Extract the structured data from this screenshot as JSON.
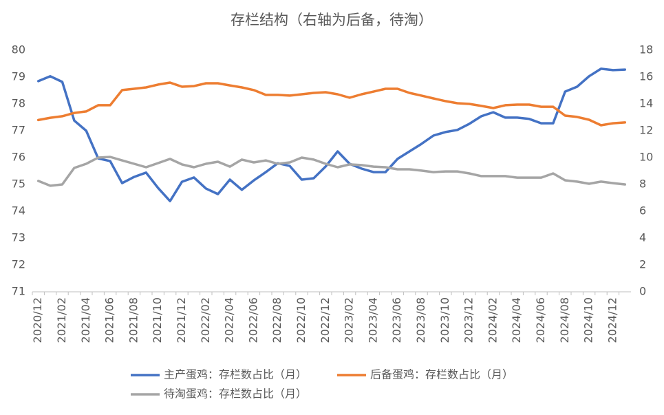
{
  "chart_data": {
    "type": "line",
    "title": "存栏结构（右轴为后备，待淘）",
    "categories": [
      "2020/12",
      null,
      "2021/02",
      null,
      "2021/04",
      null,
      "2021/06",
      null,
      "2021/08",
      null,
      "2021/10",
      null,
      "2021/12",
      null,
      "2022/02",
      null,
      "2022/04",
      null,
      "2022/06",
      null,
      "2022/08",
      null,
      "2022/10",
      null,
      "2022/12",
      null,
      "2023/02",
      null,
      "2023/04",
      null,
      "2023/06",
      null,
      "2023/08",
      null,
      "2023/10",
      null,
      "2023/12",
      null,
      "2024/02",
      null,
      "2024/04",
      null,
      "2024/06",
      null,
      "2024/08",
      null,
      "2024/10",
      null,
      "2024/12",
      null
    ],
    "ylim": [
      71,
      80
    ],
    "yticks": [
      71,
      72,
      73,
      74,
      75,
      76,
      77,
      78,
      79,
      80
    ],
    "y2lim": [
      0,
      18
    ],
    "y2ticks": [
      0,
      2,
      4,
      6,
      8,
      10,
      12,
      14,
      16,
      18
    ],
    "grid": false,
    "series": [
      {
        "name": "主产蛋鸡：存栏数占比（月）",
        "color": "#4472c4",
        "axis": "y",
        "values": [
          78.85,
          79.03,
          78.82,
          77.38,
          77.0,
          75.97,
          75.87,
          75.05,
          75.28,
          75.44,
          74.87,
          74.38,
          75.1,
          75.26,
          74.85,
          74.64,
          75.18,
          74.8,
          75.15,
          75.46,
          75.79,
          75.69,
          75.18,
          75.23,
          75.67,
          76.23,
          75.77,
          75.59,
          75.46,
          75.46,
          75.95,
          76.23,
          76.51,
          76.82,
          76.95,
          77.03,
          77.26,
          77.54,
          77.69,
          77.49,
          77.49,
          77.44,
          77.28,
          77.28,
          78.46,
          78.64,
          79.03,
          79.31,
          79.26,
          79.28
        ]
      },
      {
        "name": "后备蛋鸡：存栏数占比（月）",
        "color": "#ed7d31",
        "axis": "y2",
        "values": [
          12.8,
          12.97,
          13.08,
          13.33,
          13.44,
          13.9,
          13.9,
          15.03,
          15.13,
          15.23,
          15.44,
          15.59,
          15.28,
          15.33,
          15.54,
          15.54,
          15.38,
          15.23,
          15.03,
          14.67,
          14.67,
          14.62,
          14.72,
          14.82,
          14.87,
          14.72,
          14.46,
          14.72,
          14.92,
          15.13,
          15.13,
          14.82,
          14.62,
          14.41,
          14.21,
          14.05,
          14.0,
          13.85,
          13.69,
          13.9,
          13.95,
          13.95,
          13.79,
          13.79,
          13.13,
          13.03,
          12.82,
          12.41,
          12.56,
          12.62
        ]
      },
      {
        "name": "待淘蛋鸡：存栏数占比（月）",
        "color": "#a5a5a5",
        "axis": "y2",
        "values": [
          8.26,
          7.9,
          8.0,
          9.23,
          9.54,
          10.0,
          10.05,
          9.79,
          9.54,
          9.28,
          9.59,
          9.9,
          9.49,
          9.28,
          9.54,
          9.69,
          9.33,
          9.85,
          9.64,
          9.79,
          9.54,
          9.64,
          10.0,
          9.85,
          9.54,
          9.28,
          9.49,
          9.44,
          9.33,
          9.28,
          9.13,
          9.13,
          9.03,
          8.92,
          8.97,
          8.97,
          8.82,
          8.62,
          8.62,
          8.62,
          8.51,
          8.51,
          8.51,
          8.82,
          8.31,
          8.21,
          8.05,
          8.21,
          8.1,
          8.0
        ]
      }
    ]
  }
}
